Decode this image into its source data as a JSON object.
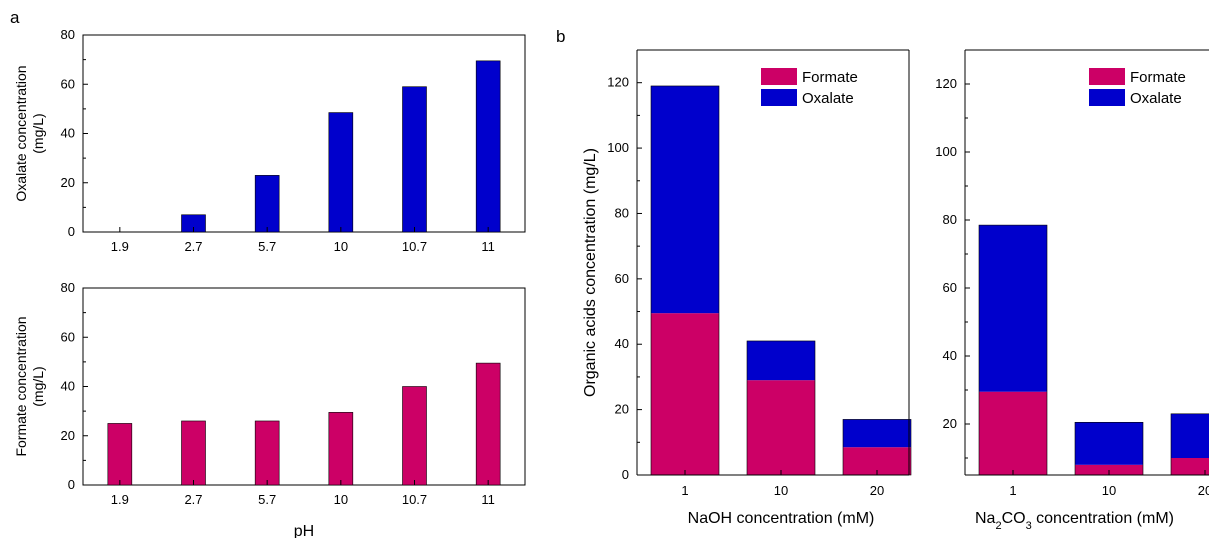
{
  "colors": {
    "oxalate": "#0000CC",
    "formate": "#CC0066",
    "axis": "#000000"
  },
  "panel_labels": {
    "a": "a",
    "b": "b"
  },
  "chart_data": [
    {
      "id": "oxalate_vs_ph",
      "type": "bar",
      "categories": [
        "1.9",
        "2.7",
        "5.7",
        "10",
        "10.7",
        "11"
      ],
      "series": [
        {
          "name": "",
          "values": [
            0,
            7,
            23,
            48.5,
            59,
            69.5
          ]
        }
      ],
      "xlabel": "",
      "ylabel_lines": [
        "Oxalate concentration",
        "(mg/L)"
      ],
      "ylim": [
        0,
        80
      ],
      "yticks": [
        0,
        20,
        40,
        60,
        80
      ],
      "grid": false
    },
    {
      "id": "formate_vs_ph",
      "type": "bar",
      "categories": [
        "1.9",
        "2.7",
        "5.7",
        "10",
        "10.7",
        "11"
      ],
      "series": [
        {
          "name": "",
          "values": [
            25,
            26,
            26,
            29.5,
            40,
            49.5
          ]
        }
      ],
      "xlabel": "pH",
      "ylabel_lines": [
        "Formate concentration",
        "(mg/L)"
      ],
      "ylim": [
        0,
        80
      ],
      "yticks": [
        0,
        20,
        40,
        60,
        80
      ],
      "grid": false
    },
    {
      "id": "acids_vs_naoh",
      "type": "bar",
      "stacked": true,
      "categories": [
        "1",
        "10",
        "20"
      ],
      "series": [
        {
          "name": "Formate",
          "values": [
            49.5,
            29,
            8.5
          ]
        },
        {
          "name": "Oxalate",
          "values": [
            69.5,
            12,
            8.5
          ]
        }
      ],
      "xlabel": "NaOH concentration (mM)",
      "ylabel": "Organic acids concentration (mg/L)",
      "ylim": [
        0,
        130
      ],
      "yticks": [
        0,
        20,
        40,
        60,
        80,
        100,
        120
      ],
      "legend": "top-right",
      "grid": false
    },
    {
      "id": "acids_vs_na2co3",
      "type": "bar",
      "stacked": true,
      "categories": [
        "1",
        "10",
        "20"
      ],
      "series": [
        {
          "name": "Formate",
          "values": [
            29.5,
            8,
            10
          ]
        },
        {
          "name": "Oxalate",
          "values": [
            49,
            12.5,
            13
          ]
        }
      ],
      "xlabel_parts": [
        "Na",
        "2",
        "CO",
        "3",
        " concentration (mM)"
      ],
      "ylim": [
        5,
        130
      ],
      "yticks": [
        20,
        40,
        60,
        80,
        100,
        120
      ],
      "legend": "top-right",
      "grid": false
    }
  ]
}
